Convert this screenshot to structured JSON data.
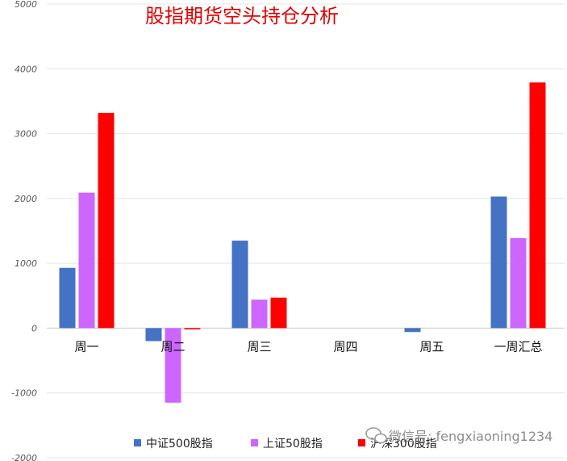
{
  "chart_data": {
    "type": "bar",
    "title": "股指期货空头持仓分析",
    "categories": [
      "周一",
      "周二",
      "周三",
      "周四",
      "周五",
      "一周汇总"
    ],
    "series": [
      {
        "name": "中证500股指",
        "color": "#4472C4",
        "values": [
          930,
          -200,
          1350,
          0,
          -60,
          2030
        ]
      },
      {
        "name": "上证50股指",
        "color": "#CC66FF",
        "values": [
          2090,
          -1150,
          440,
          0,
          0,
          1390
        ]
      },
      {
        "name": "沪深300股指",
        "color": "#FF0000",
        "values": [
          3320,
          -20,
          470,
          0,
          0,
          3790
        ]
      }
    ],
    "ylim": [
      -2000,
      5000
    ],
    "yticks": [
      5000,
      4000,
      3000,
      2000,
      1000,
      0,
      -1000,
      -2000
    ],
    "ytick_labels": [
      "5000",
      "4000",
      "3000",
      "2000",
      "1000",
      "0",
      "-1000",
      "-2000"
    ],
    "grid": true,
    "legend_position": "bottom",
    "title_color": "#E00000"
  },
  "watermark": "微信号: fengxiaoning1234"
}
